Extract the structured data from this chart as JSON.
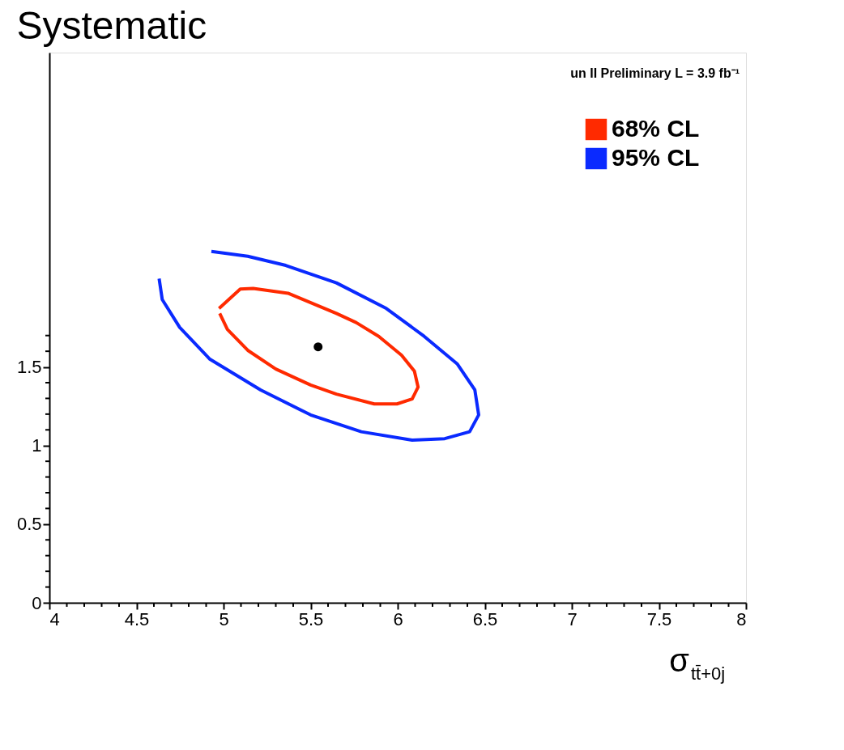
{
  "chart_data": {
    "type": "line",
    "title": "Systematic",
    "xlabel": "σ$_{tt̄+0j}$",
    "annotations": [
      "un II Preliminary L = 3.9 fb⁻¹"
    ],
    "xlim": [
      4,
      8
    ],
    "ylim": [
      0,
      3.5
    ],
    "xticks": [
      4,
      {
        "value": 4.1,
        "label": null
      },
      {
        "value": 4.2,
        "label": null
      },
      {
        "value": 4.3,
        "label": null
      },
      {
        "value": 4.4,
        "label": null
      },
      4.5,
      {
        "value": 4.6,
        "label": null
      },
      {
        "value": 4.7,
        "label": null
      },
      {
        "value": 4.8,
        "label": null
      },
      {
        "value": 4.9,
        "label": null
      },
      5,
      {
        "value": 5.1,
        "label": null
      },
      {
        "value": 5.2,
        "label": null
      },
      {
        "value": 5.3,
        "label": null
      },
      {
        "value": 5.4,
        "label": null
      },
      5.5,
      {
        "value": 5.6,
        "label": null
      },
      {
        "value": 5.7,
        "label": null
      },
      {
        "value": 5.8,
        "label": null
      },
      {
        "value": 5.9,
        "label": null
      },
      6,
      {
        "value": 6.1,
        "label": null
      },
      {
        "value": 6.2,
        "label": null
      },
      {
        "value": 6.3,
        "label": null
      },
      {
        "value": 6.4,
        "label": null
      },
      6.5,
      {
        "value": 6.6,
        "label": null
      },
      {
        "value": 6.7,
        "label": null
      },
      {
        "value": 6.8,
        "label": null
      },
      {
        "value": 6.9,
        "label": null
      },
      7,
      {
        "value": 7.1,
        "label": null
      },
      {
        "value": 7.2,
        "label": null
      },
      {
        "value": 7.3,
        "label": null
      },
      {
        "value": 7.4,
        "label": null
      },
      7.5,
      {
        "value": 7.6,
        "label": null
      },
      {
        "value": 7.7,
        "label": null
      },
      {
        "value": 7.8,
        "label": null
      },
      {
        "value": 7.9,
        "label": null
      },
      8
    ],
    "yticks": [
      0,
      {
        "value": 0.1,
        "label": null
      },
      {
        "value": 0.2,
        "label": null
      },
      {
        "value": 0.3,
        "label": null
      },
      {
        "value": 0.4,
        "label": null
      },
      0.5,
      {
        "value": 0.6,
        "label": null
      },
      {
        "value": 0.7,
        "label": null
      },
      {
        "value": 0.8,
        "label": null
      },
      {
        "value": 0.9,
        "label": null
      },
      1,
      {
        "value": 1.1,
        "label": null
      },
      {
        "value": 1.2,
        "label": null
      },
      {
        "value": 1.3,
        "label": null
      },
      {
        "value": 1.4,
        "label": null
      },
      1.5,
      {
        "value": 1.6,
        "label": null
      },
      {
        "value": 1.7,
        "label": null
      }
    ],
    "grid": false,
    "legend": "top right",
    "line_style": "solid",
    "marker": "none",
    "series": [
      {
        "name": "68% CL",
        "color": "#ff2a00",
        "x": [
          4.974,
          5.096,
          5.17,
          5.37,
          5.648,
          5.761,
          5.891,
          6.022,
          6.096,
          6.117,
          6.083,
          5.996,
          5.865,
          5.648,
          5.5,
          5.3,
          5.139,
          5.022,
          4.978
        ],
        "values": [
          1.872,
          1.996,
          2.0,
          1.969,
          1.841,
          1.783,
          1.695,
          1.575,
          1.473,
          1.372,
          1.296,
          1.265,
          1.265,
          1.327,
          1.385,
          1.487,
          1.606,
          1.739,
          1.841
        ]
      },
      {
        "name": "95% CL",
        "color": "#0a2aff",
        "x": [
          4.93,
          5.139,
          5.357,
          5.648,
          5.935,
          6.152,
          6.343,
          6.443,
          6.465,
          6.413,
          6.27,
          6.083,
          5.791,
          5.5,
          5.213,
          4.922,
          4.748,
          4.648,
          4.63
        ],
        "values": [
          2.235,
          2.204,
          2.146,
          2.035,
          1.872,
          1.695,
          1.518,
          1.354,
          1.195,
          1.088,
          1.044,
          1.035,
          1.088,
          1.195,
          1.354,
          1.549,
          1.752,
          1.929,
          2.062
        ]
      },
      {
        "type": "scatter",
        "marker": "circle",
        "color": "#000000",
        "x": [
          5.543
        ],
        "values": [
          1.628
        ]
      }
    ]
  }
}
